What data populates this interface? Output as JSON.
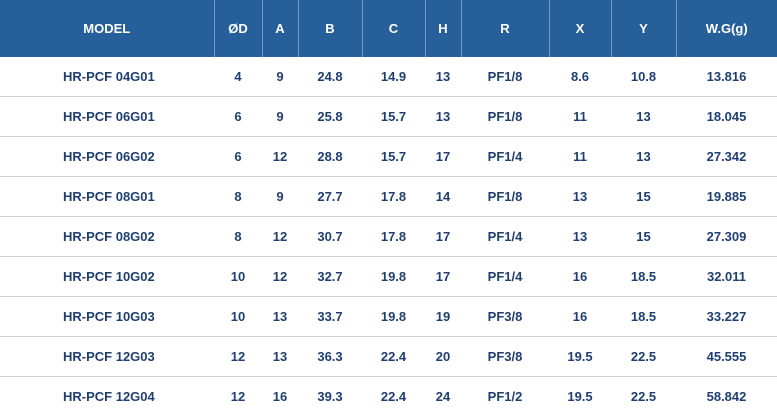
{
  "table": {
    "headers": [
      "MODEL",
      "ØD",
      "A",
      "B",
      "C",
      "H",
      "R",
      "X",
      "Y",
      "W.G(g)"
    ],
    "rows": [
      [
        "HR-PCF 04G01",
        "4",
        "9",
        "24.8",
        "14.9",
        "13",
        "PF1/8",
        "8.6",
        "10.8",
        "13.816"
      ],
      [
        "HR-PCF 06G01",
        "6",
        "9",
        "25.8",
        "15.7",
        "13",
        "PF1/8",
        "11",
        "13",
        "18.045"
      ],
      [
        "HR-PCF 06G02",
        "6",
        "12",
        "28.8",
        "15.7",
        "17",
        "PF1/4",
        "11",
        "13",
        "27.342"
      ],
      [
        "HR-PCF 08G01",
        "8",
        "9",
        "27.7",
        "17.8",
        "14",
        "PF1/8",
        "13",
        "15",
        "19.885"
      ],
      [
        "HR-PCF 08G02",
        "8",
        "12",
        "30.7",
        "17.8",
        "17",
        "PF1/4",
        "13",
        "15",
        "27.309"
      ],
      [
        "HR-PCF 10G02",
        "10",
        "12",
        "32.7",
        "19.8",
        "17",
        "PF1/4",
        "16",
        "18.5",
        "32.011"
      ],
      [
        "HR-PCF 10G03",
        "10",
        "13",
        "33.7",
        "19.8",
        "19",
        "PF3/8",
        "16",
        "18.5",
        "33.227"
      ],
      [
        "HR-PCF 12G03",
        "12",
        "13",
        "36.3",
        "22.4",
        "20",
        "PF3/8",
        "19.5",
        "22.5",
        "45.555"
      ],
      [
        "HR-PCF 12G04",
        "12",
        "16",
        "39.3",
        "22.4",
        "24",
        "PF1/2",
        "19.5",
        "22.5",
        "58.842"
      ]
    ]
  },
  "colors": {
    "header_background": "#275f9a",
    "header_text": "#ffffff",
    "body_text": "#1f3f72",
    "row_divider": "#cfcfcf"
  }
}
